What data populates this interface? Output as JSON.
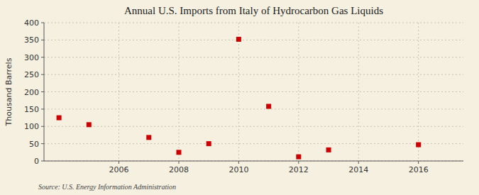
{
  "chart_data": {
    "type": "scatter",
    "title": "Annual U.S. Imports from Italy of Hydrocarbon Gas Liquids",
    "y_label": "Thousand Barrels",
    "annotation": "Source: U.S. Energy Information Administration",
    "x": [
      2004,
      2005,
      2007,
      2008,
      2009,
      2010,
      2011,
      2012,
      2013,
      2016
    ],
    "values": [
      125,
      105,
      68,
      25,
      50,
      352,
      158,
      12,
      32,
      47
    ],
    "xlim": [
      2003.5,
      2017.5
    ],
    "ylim": [
      0,
      400
    ],
    "xticks": [
      2006,
      2008,
      2010,
      2012,
      2014,
      2016
    ],
    "yticks": [
      0,
      50,
      100,
      150,
      200,
      250,
      300,
      350,
      400
    ],
    "color": "#cc0000",
    "marker": "square",
    "grid": true
  }
}
